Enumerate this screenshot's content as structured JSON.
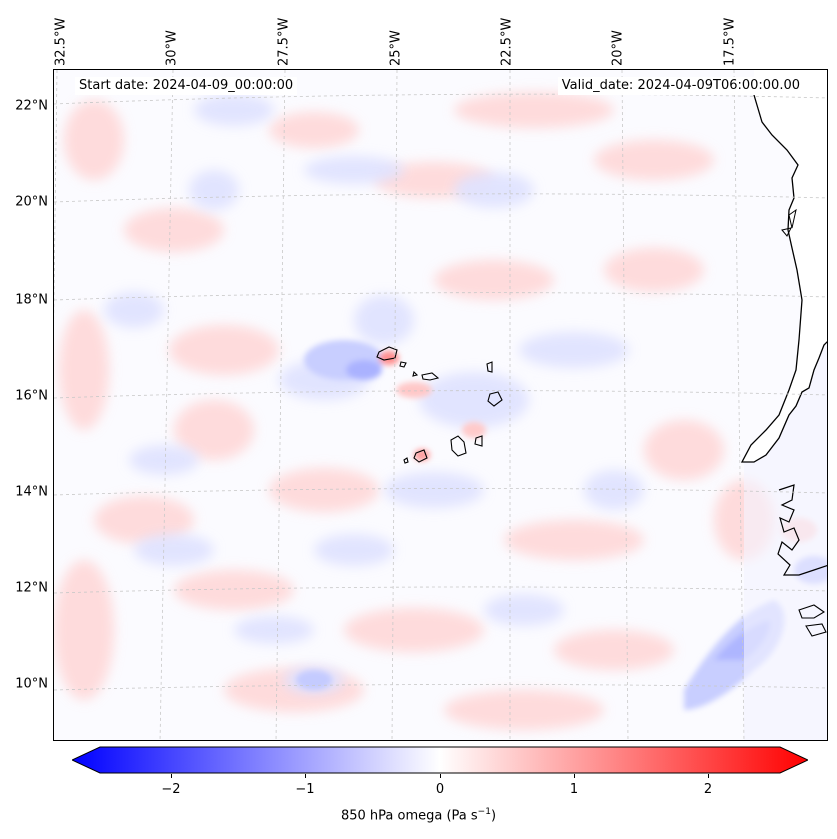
{
  "header": {
    "start_date": "Start date: 2024-04-09_00:00:00",
    "valid_date": "Valid_date: 2024-04-09T06:00:00.00"
  },
  "longitude_labels": [
    "32.5°W",
    "30°W",
    "27.5°W",
    "25°W",
    "22.5°W",
    "20°W",
    "17.5°W"
  ],
  "latitude_labels": [
    "22°N",
    "20°N",
    "18°N",
    "16°N",
    "14°N",
    "12°N",
    "10°N"
  ],
  "colorbar": {
    "ticks": [
      "−2",
      "−1",
      "0",
      "1",
      "2"
    ],
    "label_main": "850 hPa omega (Pa s",
    "label_exp": "−1",
    "label_end": ")",
    "min_color": "#0000ff",
    "mid_color": "#ffffff",
    "max_color": "#ff0000"
  },
  "map": {
    "land_color": "#ffffff",
    "coast_color": "#000000",
    "grid_color": "#c8c8c8"
  }
}
